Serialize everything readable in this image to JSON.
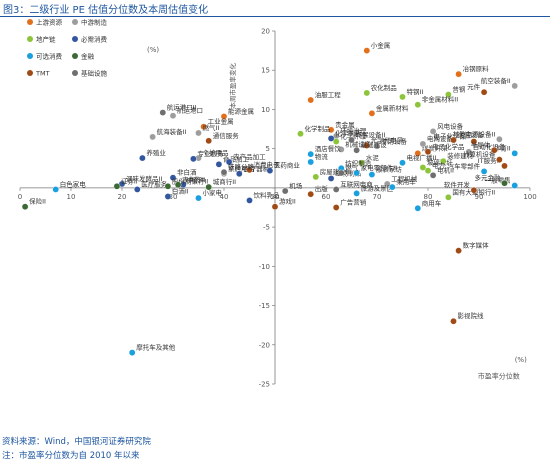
{
  "header": {
    "title": "图3：二级行业 PE 估值分位数及本周估值变化"
  },
  "footer": {
    "source": "资料来源：Wind，中国银河证券研究院",
    "note": "注：市盈率分位数为自 2010 年以来"
  },
  "chart_data": {
    "type": "scatter",
    "xlabel": "市盈率分位数",
    "ylabel": "本周市盈率变化",
    "x_unit": "(%)",
    "y_unit": "(%)",
    "xlim": [
      0,
      100
    ],
    "ylim": [
      -25,
      20
    ],
    "x_ticks": [
      0,
      10,
      20,
      30,
      40,
      50,
      60,
      70,
      80,
      90,
      100
    ],
    "y_ticks": [
      20,
      15,
      10,
      5,
      0,
      -5,
      -10,
      -15,
      -20,
      -25
    ],
    "grid": false,
    "legend_position": "top-left",
    "colors": {
      "上游资源": "#e1701d",
      "中游制造": "#9d9d9d",
      "地产链": "#8cc43a",
      "必需消费": "#33579f",
      "可选消费": "#1aa0df",
      "金融": "#3c6a32",
      "TMT": "#a04b16",
      "基础设施": "#6f6f6f"
    },
    "series": [
      {
        "name": "上游资源",
        "points": [
          {
            "label": "小金属",
            "x": 68,
            "y": 17.5
          },
          {
            "label": "能源金属",
            "x": 40,
            "y": 9.1
          },
          {
            "label": "工业金属",
            "x": 36,
            "y": 7.8
          },
          {
            "label": "贵金属",
            "x": 61,
            "y": 7.4
          },
          {
            "label": "金属新材料",
            "x": 69,
            "y": 9.5
          },
          {
            "label": "油服工程",
            "x": 57,
            "y": 11.2
          },
          {
            "label": "煤炭开采",
            "x": 78,
            "y": 4.4
          },
          {
            "label": "冶钢原料",
            "x": 86,
            "y": 14.5
          }
        ]
      },
      {
        "name": "中游制造",
        "points": [
          {
            "label": "航空装备II",
            "x": 97,
            "y": 13
          },
          {
            "label": "航运港口",
            "x": 30,
            "y": 9.2
          },
          {
            "label": "航海装备II",
            "x": 26,
            "y": 6.5
          },
          {
            "label": "燃气II",
            "x": 35,
            "y": 7
          },
          {
            "label": "个护用品",
            "x": 35,
            "y": 3.8
          },
          {
            "label": "家居用品",
            "x": 40,
            "y": 1.8
          },
          {
            "label": "机械设备",
            "x": 63,
            "y": 4.9
          },
          {
            "label": "环境治理",
            "x": 62,
            "y": 6.6
          },
          {
            "label": "专用设备",
            "x": 70,
            "y": 5.3
          },
          {
            "label": "工程机械",
            "x": 72,
            "y": 0.5
          },
          {
            "label": "自动化设备",
            "x": 88,
            "y": 4.6
          },
          {
            "label": "其他电源设备II",
            "x": 94,
            "y": 6.2
          },
          {
            "label": "风电设备",
            "x": 81,
            "y": 7.2
          },
          {
            "label": "电网设备",
            "x": 79,
            "y": 5.6
          }
        ]
      },
      {
        "name": "地产链",
        "points": [
          {
            "label": "特钢II",
            "x": 75,
            "y": 11.6
          },
          {
            "label": "普钢",
            "x": 84,
            "y": 11.9
          },
          {
            "label": "非金属材料II",
            "x": 78,
            "y": 10.6
          },
          {
            "label": "农化制品",
            "x": 68,
            "y": 12.1
          },
          {
            "label": "化学制品",
            "x": 55,
            "y": 6.9
          },
          {
            "label": "水泥",
            "x": 67,
            "y": 3.2
          },
          {
            "label": "玻璃玻纤",
            "x": 79,
            "y": 2.6
          },
          {
            "label": "国有大型银行II",
            "x": 84,
            "y": -1.2
          },
          {
            "label": "化学纤维",
            "x": 62,
            "y": 5.9
          },
          {
            "label": "装修建材",
            "x": 83,
            "y": 3.4
          },
          {
            "label": "房屋建设II",
            "x": 58,
            "y": 1.4
          },
          {
            "label": "电力",
            "x": 80,
            "y": 2.2
          }
        ]
      },
      {
        "name": "必需消费",
        "points": [
          {
            "label": "食品加工",
            "x": 39,
            "y": 3
          },
          {
            "label": "农产品加工",
            "x": 41,
            "y": 3.3
          },
          {
            "label": "白酒II",
            "x": 29,
            "y": -1.1
          },
          {
            "label": "调味发酵品II",
            "x": 20,
            "y": 0.5
          },
          {
            "label": "非白酒",
            "x": 30,
            "y": 1.3
          },
          {
            "label": "医疗器械",
            "x": 43,
            "y": 1.8
          },
          {
            "label": "饮料乳品",
            "x": 45,
            "y": -1.6
          },
          {
            "label": "医疗服务",
            "x": 23,
            "y": -0.2
          },
          {
            "label": "化学制药",
            "x": 61,
            "y": 6.3
          },
          {
            "label": "中药II",
            "x": 32,
            "y": 0.4
          },
          {
            "label": "医药商业",
            "x": 49,
            "y": 2.2
          },
          {
            "label": "生物制品",
            "x": 61,
            "y": 1.2
          },
          {
            "label": "养殖业",
            "x": 24,
            "y": 3.8
          },
          {
            "label": "专业服务",
            "x": 34,
            "y": 3.7
          }
        ]
      },
      {
        "name": "可选消费",
        "points": [
          {
            "label": "白色家电",
            "x": 7,
            "y": -0.2
          },
          {
            "label": "摩托车及其他",
            "x": 22,
            "y": -21
          },
          {
            "label": "小家电",
            "x": 35,
            "y": -1.3
          },
          {
            "label": "服装家纺",
            "x": 69,
            "y": 1.7
          },
          {
            "label": "旅游及景区",
            "x": 66,
            "y": -0.7
          },
          {
            "label": "汽车零部件",
            "x": 91,
            "y": 2.1
          },
          {
            "label": "纺织制造",
            "x": 63,
            "y": 2.5
          },
          {
            "label": "家电零部件II",
            "x": 66,
            "y": 1.9
          },
          {
            "label": "酒店餐饮",
            "x": 57,
            "y": 4.3
          },
          {
            "label": "一般零售",
            "x": 97,
            "y": 0.3
          },
          {
            "label": "体育II",
            "x": 97,
            "y": 4.4
          },
          {
            "label": "电视广播II",
            "x": 75,
            "y": 3.2
          },
          {
            "label": "商用车",
            "x": 78,
            "y": -2.6
          },
          {
            "label": "乘用车",
            "x": 73,
            "y": 0.1
          },
          {
            "label": "物流",
            "x": 57,
            "y": 3.3
          }
        ]
      },
      {
        "name": "金融",
        "points": [
          {
            "label": "保险II",
            "x": 1,
            "y": -2.4
          },
          {
            "label": "证券II",
            "x": 19,
            "y": 0.2
          },
          {
            "label": "股份制银行II",
            "x": 29,
            "y": 0.2
          },
          {
            "label": "城商行II",
            "x": 37,
            "y": 0.1
          },
          {
            "label": "农商行II",
            "x": 31,
            "y": 0.4
          },
          {
            "label": "多元金融",
            "x": 95,
            "y": 0.6
          }
        ]
      },
      {
        "name": "TMT",
        "points": [
          {
            "label": "元件",
            "x": 91,
            "y": 12.2
          },
          {
            "label": "通信服务",
            "x": 37,
            "y": 6
          },
          {
            "label": "数字媒体",
            "x": 86,
            "y": -8
          },
          {
            "label": "影视院线",
            "x": 85,
            "y": -17
          },
          {
            "label": "广告营销",
            "x": 62,
            "y": -2.5
          },
          {
            "label": "出版",
            "x": 57,
            "y": -0.8
          },
          {
            "label": "游戏II",
            "x": 50,
            "y": -2.4
          },
          {
            "label": "电子化学品II",
            "x": 89,
            "y": 5.9
          },
          {
            "label": "IT服务II",
            "x": 95,
            "y": 2.8
          },
          {
            "label": "通信设备",
            "x": 85,
            "y": 6.1
          },
          {
            "label": "计算机设备",
            "x": 94,
            "y": 3.6
          },
          {
            "label": "半导体",
            "x": 93,
            "y": 4.8
          },
          {
            "label": "软件开发",
            "x": 89,
            "y": -0.3
          },
          {
            "label": "光学光电子",
            "x": 68,
            "y": 5.4
          },
          {
            "label": "消费电子",
            "x": 45,
            "y": 2.3
          },
          {
            "label": "电子化学品",
            "x": 80,
            "y": 4.6
          }
        ]
      },
      {
        "name": "基础设施",
        "points": [
          {
            "label": "铁路公路",
            "x": 40,
            "y": 2
          },
          {
            "label": "航运港口II",
            "x": 28,
            "y": 9.6
          },
          {
            "label": "燃气",
            "x": 63,
            "y": 1.9
          },
          {
            "label": "环保设备II",
            "x": 65,
            "y": 6.1
          },
          {
            "label": "基础建设",
            "x": 66,
            "y": 4.8
          },
          {
            "label": "互联网电商",
            "x": 62,
            "y": -0.2
          },
          {
            "label": "电机II",
            "x": 81,
            "y": 1.6
          },
          {
            "label": "机场",
            "x": 52,
            "y": -0.4
          }
        ]
      }
    ]
  }
}
